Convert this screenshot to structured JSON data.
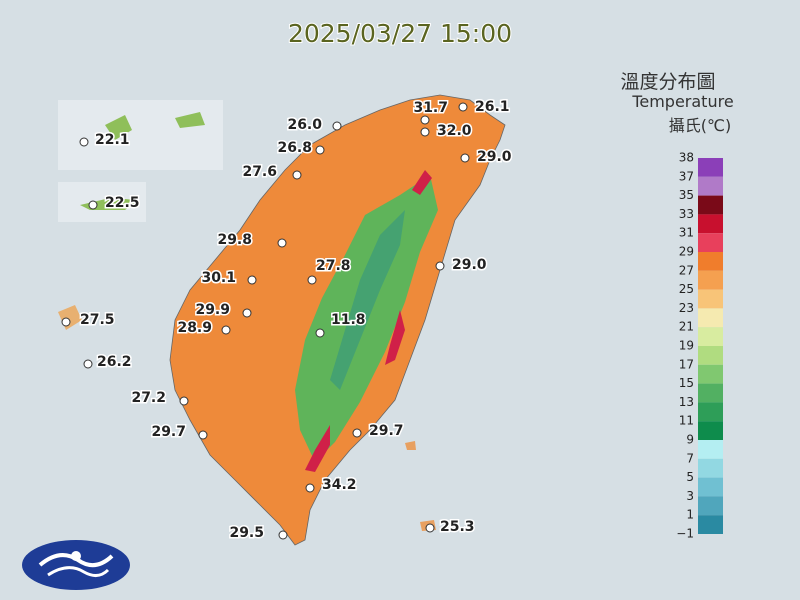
{
  "title": "2025/03/27 15:00",
  "legend": {
    "title": "溫度分布圖",
    "subtitle": "Temperature",
    "unit": "攝氏(℃)",
    "ticks": [
      "38",
      "37",
      "35",
      "33",
      "31",
      "29",
      "27",
      "25",
      "23",
      "21",
      "19",
      "17",
      "15",
      "13",
      "11",
      "9",
      "7",
      "5",
      "3",
      "1",
      "−1"
    ],
    "colors": [
      "#8b3fb8",
      "#b07ac8",
      "#7a0a18",
      "#c8102e",
      "#e8405c",
      "#f07d2c",
      "#f5a050",
      "#f8c478",
      "#f5eab0",
      "#d8eca0",
      "#b0dc80",
      "#80c870",
      "#52b062",
      "#2e9e58",
      "#0e8c4c",
      "#b4eef2",
      "#92d8e2",
      "#70c0d2",
      "#50a6bc",
      "#2a8aa2"
    ]
  },
  "stations": [
    "26.0",
    "31.7",
    "26.1",
    "32.0",
    "26.8",
    "29.0",
    "27.6",
    "29.8",
    "29.0",
    "27.8",
    "30.1",
    "29.9",
    "28.9",
    "11.8",
    "27.5",
    "26.2",
    "27.2",
    "29.7",
    "29.7",
    "34.2",
    "29.5",
    "25.3",
    "22.1",
    "22.5"
  ]
}
